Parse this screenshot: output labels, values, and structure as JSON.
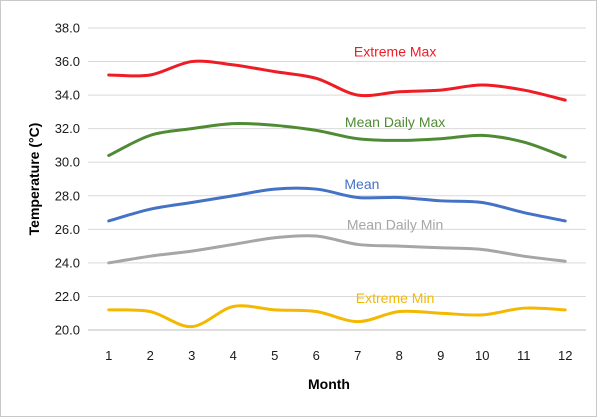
{
  "chart_data": {
    "type": "line",
    "title": "",
    "xlabel": "Month",
    "ylabel": "Temperature (°C)",
    "x": [
      1,
      2,
      3,
      4,
      5,
      6,
      7,
      8,
      9,
      10,
      11,
      12
    ],
    "x_tick_labels": [
      "1",
      "2",
      "3",
      "4",
      "5",
      "6",
      "7",
      "8",
      "9",
      "10",
      "11",
      "12"
    ],
    "xlim": [
      0.5,
      12.5
    ],
    "ylim": [
      20.0,
      38.0
    ],
    "y_ticks": [
      20.0,
      22.0,
      24.0,
      26.0,
      28.0,
      30.0,
      32.0,
      34.0,
      36.0,
      38.0
    ],
    "y_tick_labels": [
      "20.0",
      "22.0",
      "24.0",
      "26.0",
      "28.0",
      "30.0",
      "32.0",
      "34.0",
      "36.0",
      "38.0"
    ],
    "grid": "horizontal",
    "legend": "inline labels above each line",
    "series": [
      {
        "name": "Extreme Max",
        "color": "#ee1c25",
        "label_anchor": {
          "x": 7.9,
          "y": 36.3
        },
        "values": [
          35.2,
          35.2,
          36.0,
          35.8,
          35.4,
          35.0,
          34.0,
          34.2,
          34.3,
          34.6,
          34.3,
          33.7
        ]
      },
      {
        "name": "Mean Daily Max",
        "color": "#4f8a35",
        "label_anchor": {
          "x": 7.9,
          "y": 32.1
        },
        "values": [
          30.4,
          31.6,
          32.0,
          32.3,
          32.2,
          31.9,
          31.4,
          31.3,
          31.4,
          31.6,
          31.2,
          30.3
        ]
      },
      {
        "name": "Mean",
        "color": "#4472c4",
        "label_anchor": {
          "x": 7.1,
          "y": 28.4
        },
        "values": [
          26.5,
          27.2,
          27.6,
          28.0,
          28.4,
          28.4,
          27.9,
          27.9,
          27.7,
          27.6,
          27.0,
          26.5
        ]
      },
      {
        "name": "Mean Daily Min",
        "color": "#a6a6a6",
        "label_anchor": {
          "x": 7.9,
          "y": 26.0
        },
        "values": [
          24.0,
          24.4,
          24.7,
          25.1,
          25.5,
          25.6,
          25.1,
          25.0,
          24.9,
          24.8,
          24.4,
          24.1
        ]
      },
      {
        "name": "Extreme Min",
        "color": "#f5b800",
        "label_anchor": {
          "x": 7.9,
          "y": 21.6
        },
        "values": [
          21.2,
          21.1,
          20.2,
          21.4,
          21.2,
          21.1,
          20.5,
          21.1,
          21.0,
          20.9,
          21.3,
          21.2
        ]
      }
    ]
  }
}
